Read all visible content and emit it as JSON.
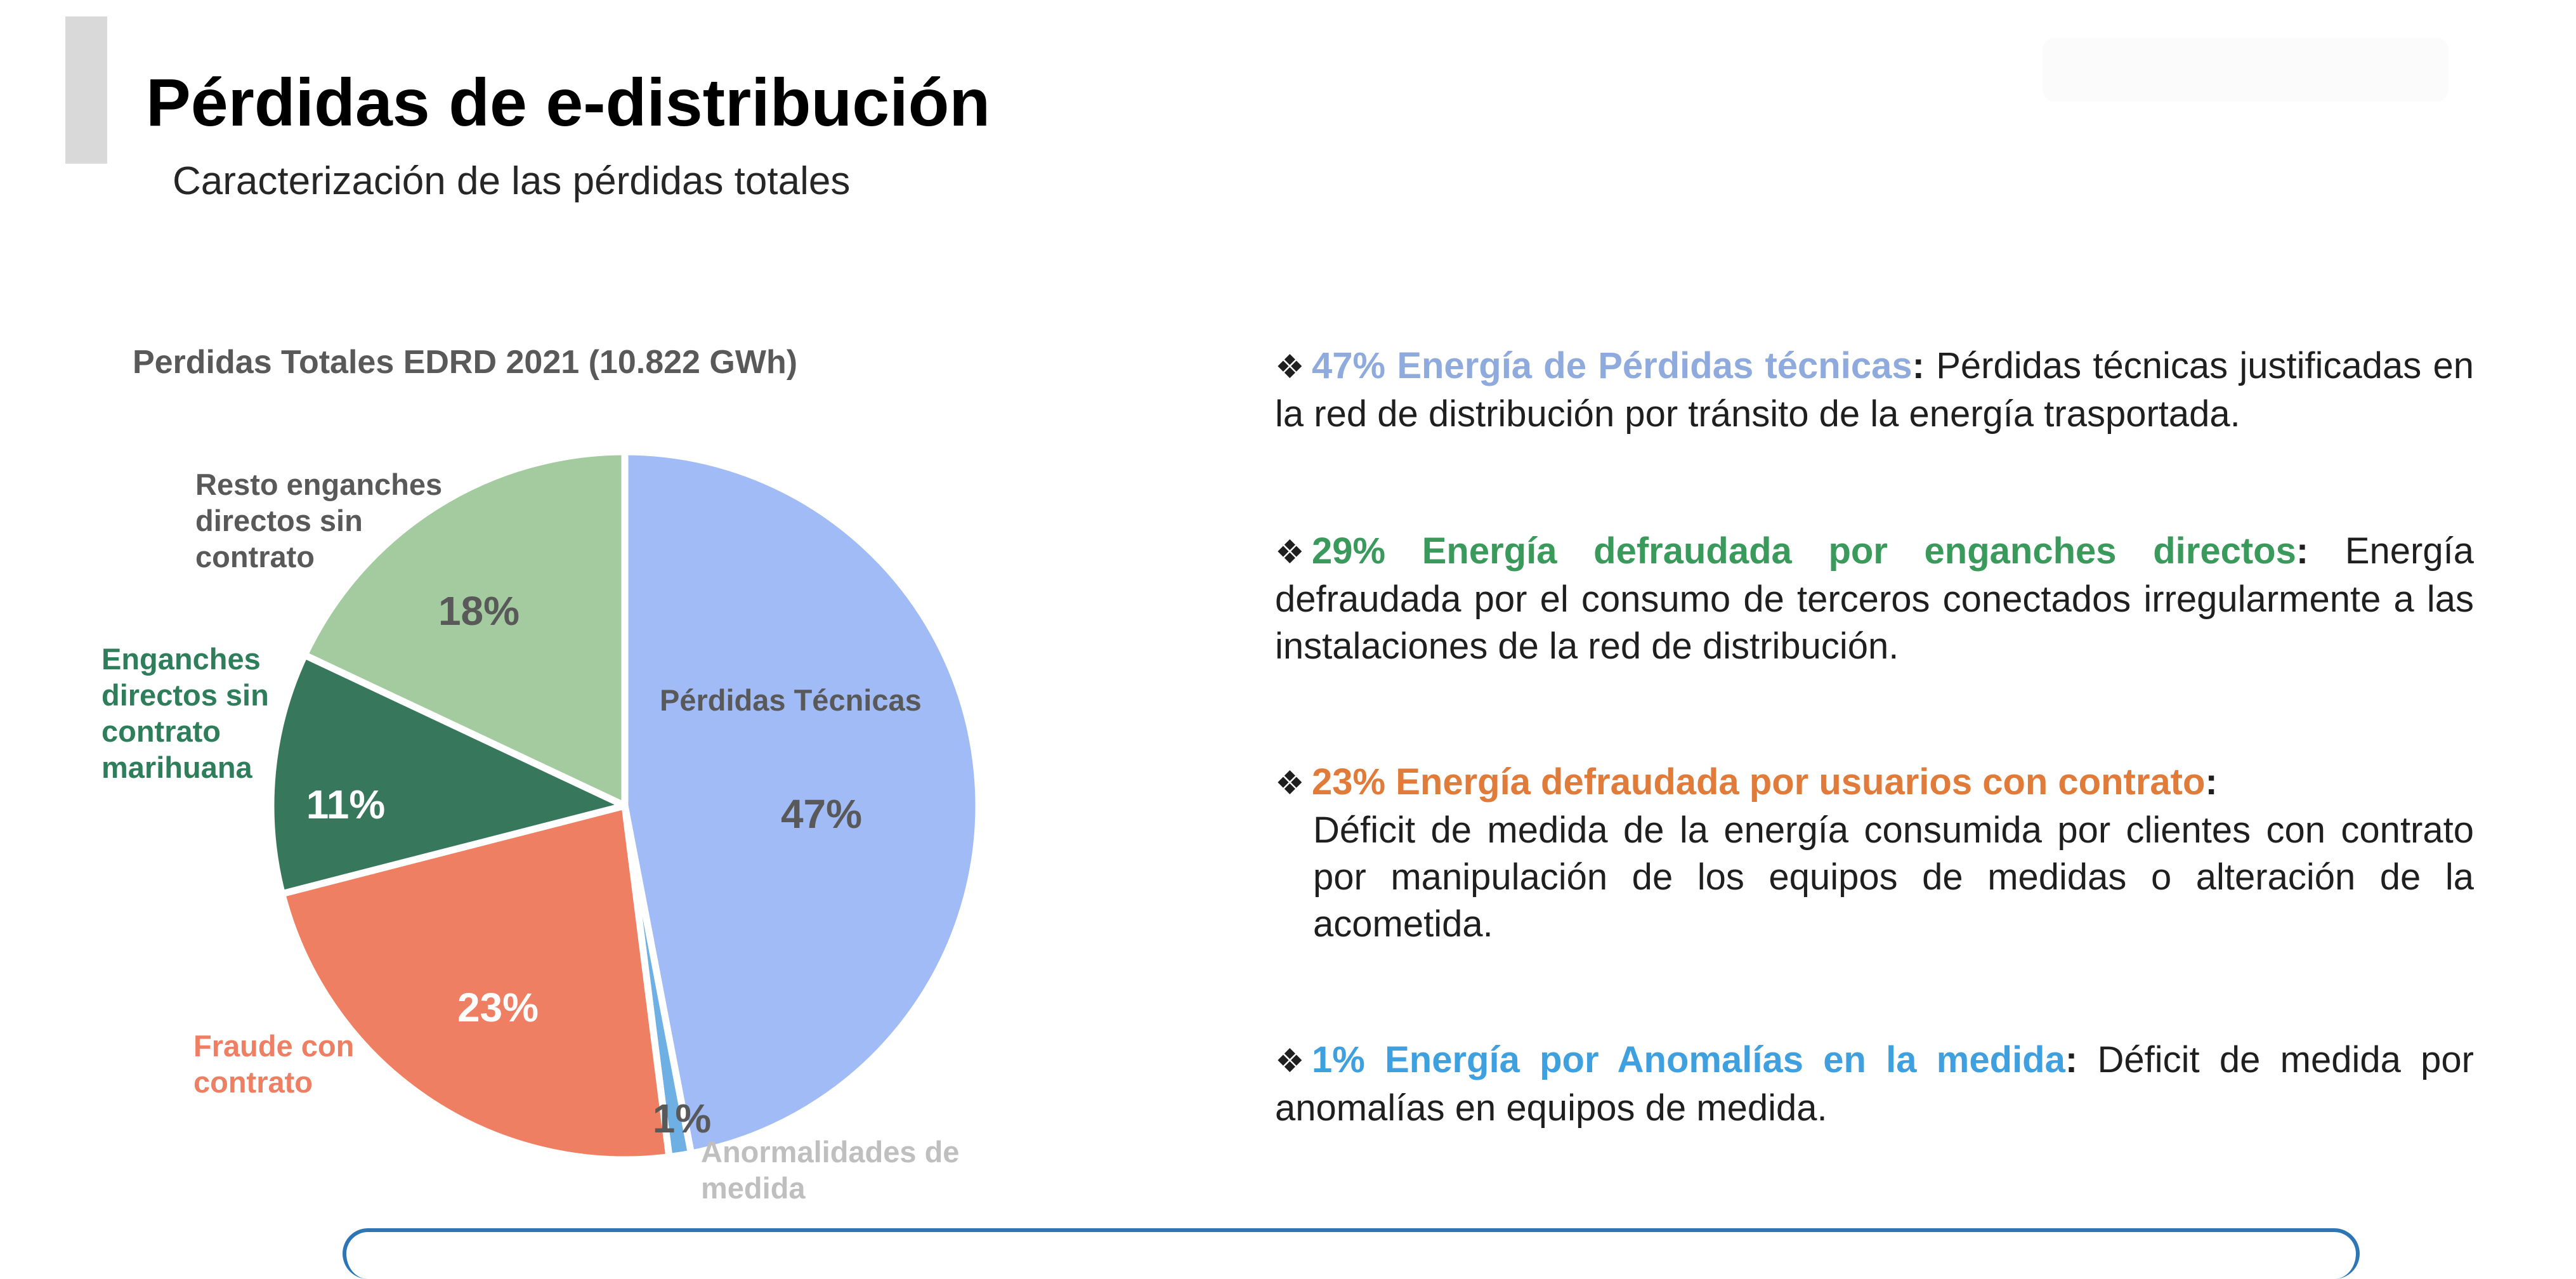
{
  "header": {
    "title": "Pérdidas de e-distribución",
    "subtitle": "Caracterización de las pérdidas totales"
  },
  "chart_data": {
    "type": "pie",
    "title": "Perdidas Totales EDRD 2021 (10.822 GWh)",
    "slices": [
      {
        "name": "Pérdidas Técnicas",
        "value": 47,
        "label": "47%",
        "color": "#a1bbf6",
        "label_color": "#595959",
        "name_color": "#595959"
      },
      {
        "name": "Anormalidades de medida",
        "value": 1,
        "label": "1%",
        "color": "#6fb0e4",
        "label_color": "#595959",
        "name_color": "#bfbfbf"
      },
      {
        "name": "Fraude con contrato",
        "value": 23,
        "label": "23%",
        "color": "#ee7f62",
        "label_color": "#ffffff",
        "name_color": "#ee7f62"
      },
      {
        "name": "Enganches directos sin contrato marihuana",
        "value": 11,
        "label": "11%",
        "color": "#37785c",
        "label_color": "#ffffff",
        "name_color": "#2e7d5b"
      },
      {
        "name": "Resto enganches directos sin contrato",
        "value": 18,
        "label": "18%",
        "color": "#a3cb9f",
        "label_color": "#595959",
        "name_color": "#595959"
      }
    ],
    "legend": "none"
  },
  "descriptions": [
    {
      "bullet": "❖",
      "lead": "47% Energía de Pérdidas técnicas",
      "lead_color": "#8faadc",
      "sep": ":",
      "body": "Pérdidas técnicas justificadas en la red de distribución por tránsito de la energía trasportada."
    },
    {
      "bullet": "❖",
      "lead": "29% Energía defraudada por enganches directos",
      "lead_color": "#3a9a5b",
      "sep": ":",
      "body": "Energía defraudada por el consumo de terceros conectados irregularmente a las instalaciones de la red de distribución."
    },
    {
      "bullet": "❖",
      "lead": "23% Energía defraudada por usuarios con contrato",
      "lead_color": "#e07b39",
      "sep": ":",
      "body": "Déficit de medida de la energía consumida por clientes con contrato por manipulación de los equipos de medidas o alteración de la acometida."
    },
    {
      "bullet": "❖",
      "lead": "1% Energía por Anomalías en la medida",
      "lead_color": "#3fa0e0",
      "sep": ":",
      "body": "Déficit de medida por anomalías en equipos de medida."
    }
  ]
}
